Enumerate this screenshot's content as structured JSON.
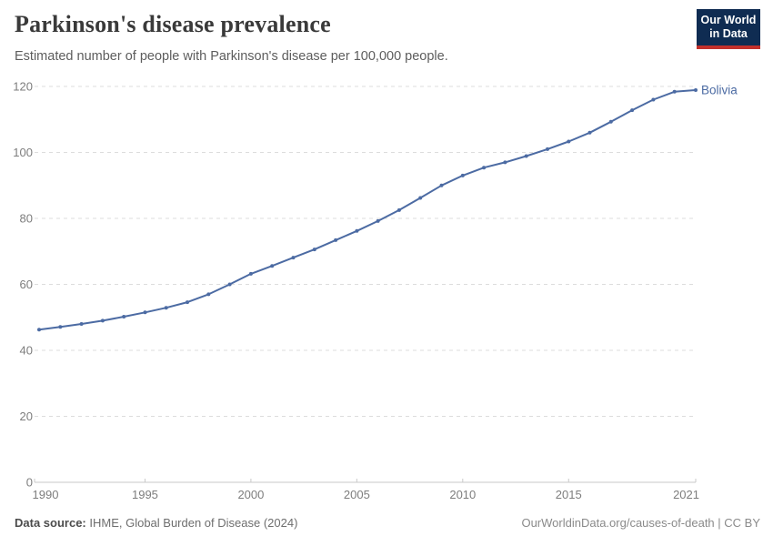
{
  "header": {
    "title": "Parkinson's disease prevalence",
    "subtitle": "Estimated number of people with Parkinson's disease per 100,000 people.",
    "logo": {
      "line1": "Our World",
      "line2": "in Data",
      "bg_color": "#0f2c52",
      "accent_color": "#c2302b"
    }
  },
  "footer": {
    "source_label": "Data source:",
    "source_value": " IHME, Global Burden of Disease (2024)",
    "credit": "OurWorldinData.org/causes-of-death | CC BY"
  },
  "chart_data": {
    "type": "line",
    "title": "Parkinson's disease prevalence",
    "subtitle": "Estimated number of people with Parkinson's disease per 100,000 people.",
    "xlabel": "",
    "ylabel": "",
    "xlim": [
      1990,
      2021
    ],
    "ylim": [
      0,
      120
    ],
    "xticks": [
      1990,
      1995,
      2000,
      2005,
      2010,
      2015,
      2021
    ],
    "yticks": [
      0,
      20,
      40,
      60,
      80,
      100,
      120
    ],
    "grid": "horizontal-dashed",
    "legend_position": "line-end-label",
    "x": [
      1990,
      1991,
      1992,
      1993,
      1994,
      1995,
      1996,
      1997,
      1998,
      1999,
      2000,
      2001,
      2002,
      2003,
      2004,
      2005,
      2006,
      2007,
      2008,
      2009,
      2010,
      2011,
      2012,
      2013,
      2014,
      2015,
      2016,
      2017,
      2018,
      2019,
      2020,
      2021
    ],
    "series": [
      {
        "name": "Bolivia",
        "color": "#4c6ba3",
        "values": [
          46.3,
          47.1,
          48.0,
          49.0,
          50.2,
          51.5,
          52.9,
          54.6,
          57.0,
          60.0,
          63.2,
          65.6,
          68.1,
          70.6,
          73.4,
          76.2,
          79.2,
          82.5,
          86.2,
          90.0,
          93.0,
          95.4,
          97.0,
          98.9,
          101.0,
          103.3,
          106.0,
          109.3,
          112.8,
          116.0,
          118.4,
          118.9
        ]
      }
    ],
    "colors": {
      "grid": "#dcdcdc",
      "axis": "#c9c9c9",
      "tick_labels": "#7d7d7d"
    }
  }
}
